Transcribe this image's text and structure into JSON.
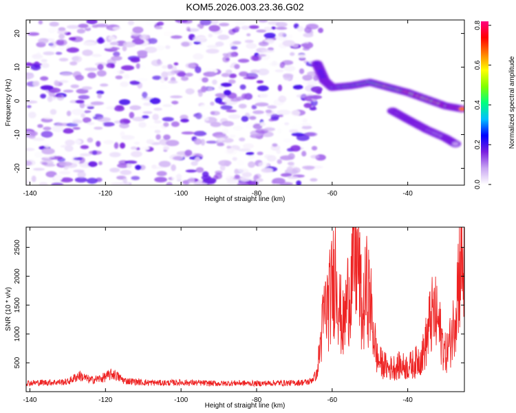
{
  "title": "KOM5.2026.003.23.36.G02",
  "chart_data": [
    {
      "type": "heatmap",
      "name": "spectrogram",
      "xlabel": "Height of straight line (km)",
      "ylabel": "Frequency (Hz)",
      "xlim": [
        -141,
        -25
      ],
      "ylim": [
        -25,
        24
      ],
      "x_ticks": [
        -140,
        -120,
        -100,
        -80,
        -60,
        -40
      ],
      "y_ticks": [
        -20,
        -10,
        0,
        10,
        20
      ],
      "colorbar": {
        "label": "Normalized spectral amplitude",
        "range": [
          0.0,
          0.82
        ],
        "ticks": [
          0.0,
          0.2,
          0.4,
          0.6,
          0.8
        ],
        "colormap": [
          "#ffffff",
          "#c9a6f2",
          "#7a1fe0",
          "#0000ff",
          "#00bfff",
          "#00ff7f",
          "#80ff00",
          "#ffff00",
          "#ff8000",
          "#ff0000",
          "#ff0080"
        ]
      },
      "noise_region": {
        "x_range": [
          -141,
          -63
        ],
        "amplitude_range": [
          0.0,
          0.15
        ]
      },
      "signal_traces": [
        {
          "name": "primary",
          "points": [
            [
              -64,
              11
            ],
            [
              -62,
              6
            ],
            [
              -60,
              4
            ],
            [
              -55,
              4.5
            ],
            [
              -50,
              5.5
            ],
            [
              -45,
              4
            ],
            [
              -40,
              2.5
            ],
            [
              -35,
              0.5
            ],
            [
              -30,
              -1.5
            ],
            [
              -25,
              -2.5
            ]
          ],
          "peak_amplitude": 0.82
        },
        {
          "name": "secondary",
          "points": [
            [
              -44,
              -3
            ],
            [
              -40,
              -5.5
            ],
            [
              -35,
              -8.5
            ],
            [
              -30,
              -11
            ],
            [
              -27,
              -13
            ]
          ],
          "peak_amplitude": 0.3
        }
      ]
    },
    {
      "type": "line",
      "name": "snr",
      "xlabel": "Height of straight line (km)",
      "ylabel": "SNR (10 * v/v)",
      "xlim": [
        -141,
        -25
      ],
      "ylim": [
        0,
        2850
      ],
      "x_ticks": [
        -140,
        -120,
        -100,
        -80,
        -60,
        -40
      ],
      "y_ticks": [
        500,
        1000,
        1500,
        2000,
        2500
      ],
      "color": "#ee2222",
      "series": [
        {
          "name": "SNR",
          "x": [
            -141,
            -135,
            -130,
            -127,
            -124,
            -121,
            -118,
            -115,
            -110,
            -105,
            -100,
            -95,
            -90,
            -85,
            -80,
            -75,
            -70,
            -66,
            -64,
            -63,
            -62,
            -61,
            -60,
            -59,
            -58,
            -57,
            -56,
            -55,
            -54,
            -53,
            -52,
            -51,
            -50,
            -49,
            -48,
            -47,
            -46,
            -45,
            -44,
            -42,
            -40,
            -38,
            -36,
            -35,
            -34,
            -33,
            -32,
            -31,
            -30,
            -29,
            -28,
            -27,
            -26,
            -25
          ],
          "values": [
            150,
            160,
            170,
            280,
            200,
            230,
            310,
            190,
            160,
            150,
            160,
            150,
            140,
            150,
            140,
            150,
            150,
            170,
            300,
            900,
            1400,
            1500,
            1800,
            2200,
            1400,
            1100,
            1600,
            1900,
            2300,
            2200,
            1200,
            1800,
            1600,
            1000,
            550,
            500,
            450,
            400,
            420,
            450,
            430,
            500,
            650,
            900,
            1250,
            1350,
            1200,
            900,
            650,
            800,
            1100,
            1700,
            2300,
            2100
          ]
        }
      ]
    }
  ]
}
